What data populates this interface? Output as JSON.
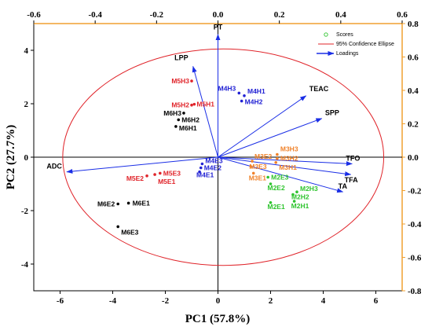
{
  "chart_data": {
    "type": "scatter",
    "subtype": "PCA biplot",
    "xlabel": "PC1 (57.8%)",
    "ylabel": "PC2 (27.7%)",
    "xlim": [
      -7,
      7
    ],
    "ylim": [
      -5,
      5
    ],
    "x_ticks": [
      -6,
      -4,
      -2,
      0,
      2,
      4,
      6
    ],
    "y_ticks": [
      -4,
      -2,
      0,
      2,
      4
    ],
    "top_xlim": [
      -0.6,
      0.6
    ],
    "top_ticks": [
      "-0.6",
      "-0.4",
      "-0.2",
      "0.0",
      "0.2",
      "0.4",
      "0.6"
    ],
    "right_ylim": [
      -0.8,
      0.8
    ],
    "right_ticks": [
      "-0.8",
      "-0.6",
      "-0.4",
      "-0.2",
      "0.0",
      "0.2",
      "0.4",
      "0.6",
      "0.8"
    ],
    "x_tick_labels": [
      "-6",
      "-4",
      "-2",
      "0",
      "2",
      "4",
      "6"
    ],
    "y_tick_labels": [
      "-4",
      "-2",
      "0",
      "2",
      "4"
    ],
    "grid": false,
    "legend": {
      "position": "top-right",
      "entries": [
        "Scores",
        "95% Confidence Ellipse",
        "Loadings"
      ]
    },
    "ellipse": {
      "cx": 0.2,
      "cy": 0,
      "rx": 6.1,
      "ry": 4.05,
      "color": "#e0242a"
    },
    "loadings": [
      {
        "name": "PT",
        "x": 0,
        "y": 4.6
      },
      {
        "name": "LPP",
        "x": -0.95,
        "y": 3.4
      },
      {
        "name": "TEAC",
        "x": 3.35,
        "y": 2.3
      },
      {
        "name": "SPP",
        "x": 3.95,
        "y": 1.45
      },
      {
        "name": "ADC",
        "x": -5.75,
        "y": -0.55
      },
      {
        "name": "TFO",
        "x": 5.1,
        "y": -0.25
      },
      {
        "name": "TFA",
        "x": 5.05,
        "y": -0.65
      },
      {
        "name": "TA",
        "x": 4.75,
        "y": -1.3
      }
    ],
    "score_groups": [
      {
        "name": "M5H",
        "color": "#e0242a",
        "points": [
          {
            "label": "M5H3",
            "x": -1.0,
            "y": 2.85
          },
          {
            "label": "M5H2",
            "x": -1.0,
            "y": 1.95
          },
          {
            "label": "M5H1",
            "x": -0.9,
            "y": 1.98
          }
        ]
      },
      {
        "name": "M6H",
        "color": "#000000",
        "points": [
          {
            "label": "M6H3",
            "x": -1.3,
            "y": 1.65
          },
          {
            "label": "M6H2",
            "x": -1.5,
            "y": 1.4
          },
          {
            "label": "M6H1",
            "x": -1.6,
            "y": 1.15
          }
        ]
      },
      {
        "name": "M4H",
        "color": "#2222d4",
        "points": [
          {
            "label": "M4H3",
            "x": 0.8,
            "y": 2.4
          },
          {
            "label": "M4H1",
            "x": 1.0,
            "y": 2.3
          },
          {
            "label": "M4H2",
            "x": 0.9,
            "y": 2.1
          }
        ]
      },
      {
        "name": "M5E",
        "color": "#e0242a",
        "points": [
          {
            "label": "M5E3",
            "x": -2.2,
            "y": -0.6
          },
          {
            "label": "M5E2",
            "x": -2.7,
            "y": -0.7
          },
          {
            "label": "M5E1",
            "x": -2.4,
            "y": -0.65
          }
        ]
      },
      {
        "name": "M4E",
        "color": "#2222d4",
        "points": [
          {
            "label": "M4E3",
            "x": -0.6,
            "y": -0.25
          },
          {
            "label": "M4E2",
            "x": -0.65,
            "y": -0.4
          },
          {
            "label": "M4E1",
            "x": -0.7,
            "y": -0.55
          }
        ]
      },
      {
        "name": "M6E",
        "color": "#000000",
        "points": [
          {
            "label": "M6E2",
            "x": -3.8,
            "y": -1.75
          },
          {
            "label": "M6E1",
            "x": -3.4,
            "y": -1.72
          },
          {
            "label": "M6E3",
            "x": -3.8,
            "y": -2.6
          }
        ]
      },
      {
        "name": "M3E",
        "color": "#f0822a",
        "points": [
          {
            "label": "M3E2",
            "x": 1.3,
            "y": -0.15
          },
          {
            "label": "M3E3",
            "x": 1.25,
            "y": -0.35
          },
          {
            "label": "M3E1",
            "x": 1.35,
            "y": -0.6
          }
        ]
      },
      {
        "name": "M3H",
        "color": "#f0822a",
        "points": [
          {
            "label": "M3H3",
            "x": 2.25,
            "y": 0.1
          },
          {
            "label": "M3H2",
            "x": 2.25,
            "y": -0.05
          },
          {
            "label": "M3H1",
            "x": 2.2,
            "y": -0.2
          }
        ]
      },
      {
        "name": "M2E",
        "color": "#2ec42e",
        "points": [
          {
            "label": "M2E3",
            "x": 1.9,
            "y": -0.75
          },
          {
            "label": "M2E2",
            "x": 2.0,
            "y": -1.0
          },
          {
            "label": "M2E1",
            "x": 2.0,
            "y": -1.7
          }
        ]
      },
      {
        "name": "M2H",
        "color": "#2ec42e",
        "points": [
          {
            "label": "M2H3",
            "x": 3.0,
            "y": -1.3
          },
          {
            "label": "M2H2",
            "x": 2.85,
            "y": -1.4
          },
          {
            "label": "M2H1",
            "x": 2.9,
            "y": -1.65
          }
        ]
      }
    ],
    "colors": {
      "ellipse": "#e0242a",
      "loadings": "#1a2ee6",
      "right_axis": "#f0a030",
      "scores_legend": "#2ec42e"
    }
  }
}
